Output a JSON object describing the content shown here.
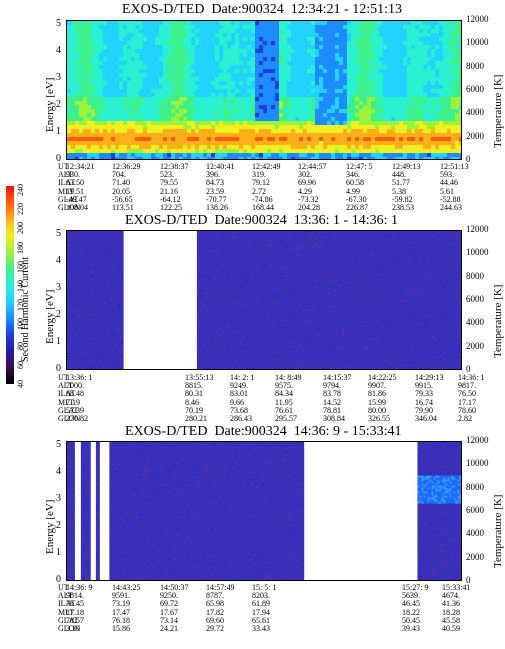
{
  "panels": [
    {
      "title": "EXOS-D/TED",
      "date": "Date:900324",
      "time_range": "12:34:21 - 12:51:13",
      "ylabel_left": "Energy [eV]",
      "ylabel_right": "Temperature [K]",
      "left_ticks": [
        "0",
        "1",
        "2",
        "3",
        "4",
        "5"
      ],
      "right_ticks": [
        "0",
        "2000",
        "4000",
        "6000",
        "8000",
        "10000",
        "12000"
      ],
      "orbit_labels": [
        "UT",
        "ALT",
        "ILAT",
        "MLT",
        "GLAT",
        "GLON"
      ],
      "orbit_columns": [
        {
          "UT": "12:34:21",
          "ALT": "930.",
          "ILAT": "63.50",
          "MLT": "19.51",
          "GLAT": "-49.47",
          "GLON": "108.04"
        },
        {
          "UT": "12:36:29",
          "ALT": "704.",
          "ILAT": "71.40",
          "MLT": "20.05",
          "GLAT": "-56.65",
          "GLON": "113.51"
        },
        {
          "UT": "12:38:37",
          "ALT": "523.",
          "ILAT": "79.55",
          "MLT": "21.16",
          "GLAT": "-64.12",
          "GLON": "122.25"
        },
        {
          "UT": "12:40:41",
          "ALT": "396.",
          "ILAT": "84.73",
          "MLT": "23.59",
          "GLAT": "-70.77",
          "GLON": "138.26"
        },
        {
          "UT": "12:42:49",
          "ALT": "319.",
          "ILAT": "79.12",
          "MLT": "2.72",
          "GLAT": "-74.86",
          "GLON": "168.44"
        },
        {
          "UT": "12:44:57",
          "ALT": "302.",
          "ILAT": "69.96",
          "MLT": "4.29",
          "GLAT": "-73.32",
          "GLON": "204.28"
        },
        {
          "UT": "12:47: 5",
          "ALT": "346.",
          "ILAT": "60.58",
          "MLT": "4.99",
          "GLAT": "-67.30",
          "GLON": "226.87"
        },
        {
          "UT": "12:49:13",
          "ALT": "448.",
          "ILAT": "51.77",
          "MLT": "5.38",
          "GLAT": "-59.82",
          "GLON": "238.53"
        },
        {
          "UT": "12:51:13",
          "ALT": "593.",
          "ILAT": "44.46",
          "MLT": "5.61",
          "GLAT": "-52.88",
          "GLON": "244.63"
        }
      ]
    },
    {
      "title": "EXOS-D/TED",
      "date": "Date:900324",
      "time_range": "13:36: 1 - 14:36: 1",
      "ylabel_left": "Energy [eV]",
      "ylabel_right": "Temperature [K]",
      "left_ticks": [
        "0",
        "1",
        "2",
        "3",
        "4",
        "5"
      ],
      "right_ticks": [
        "0",
        "2000",
        "4000",
        "6000",
        "8000",
        "10000",
        "12000"
      ],
      "orbit_labels": [
        "UT",
        "ALT",
        "ILAT",
        "MLT",
        "GLAT",
        "GLON"
      ],
      "orbit_columns": [
        {
          "UT": "13:36: 1",
          "ALT": "7000.",
          "ILAT": "68.48",
          "MLT": "7.19",
          "GLAT": "57.39",
          "GLON": "270.82"
        },
        {
          "UT": "13:55:13",
          "ALT": "8815.",
          "ILAT": "80.31",
          "MLT": "8.46",
          "GLAT": "70.19",
          "GLON": "280.21"
        },
        {
          "UT": "14: 2: 1",
          "ALT": "9249.",
          "ILAT": "83.01",
          "MLT": "9.66",
          "GLAT": "73.68",
          "GLON": "286.43"
        },
        {
          "UT": "14: 8:49",
          "ALT": "9575.",
          "ILAT": "84.34",
          "MLT": "11.95",
          "GLAT": "76.61",
          "GLON": "295.57"
        },
        {
          "UT": "14:15:37",
          "ALT": "9794.",
          "ILAT": "83.78",
          "MLT": "14.52",
          "GLAT": "78.81",
          "GLON": "308.84"
        },
        {
          "UT": "14:22:25",
          "ALT": "9907.",
          "ILAT": "81.86",
          "MLT": "15.99",
          "GLAT": "80.00",
          "GLON": "326.55"
        },
        {
          "UT": "14:29:13",
          "ALT": "9915.",
          "ILAT": "79.33",
          "MLT": "16.74",
          "GLAT": "79.90",
          "GLON": "346.04"
        },
        {
          "UT": "14:36: 1",
          "ALT": "9817.",
          "ILAT": "76.50",
          "MLT": "17.17",
          "GLAT": "78.60",
          "GLON": "2.82"
        }
      ]
    },
    {
      "title": "EXOS-D/TED",
      "date": "Date:900324",
      "time_range": "14:36: 9 - 15:33:41",
      "ylabel_left": "Energy [eV]",
      "ylabel_right": "Temperature [K]",
      "left_ticks": [
        "0",
        "1",
        "2",
        "3",
        "4",
        "5"
      ],
      "right_ticks": [
        "0",
        "2000",
        "4000",
        "6000",
        "8000",
        "10000",
        "12000"
      ],
      "orbit_labels": [
        "UT",
        "ALT",
        "ILAT",
        "MLT",
        "GLAT",
        "GLON"
      ],
      "orbit_columns": [
        {
          "UT": "14:36: 9",
          "ALT": "9814.",
          "ILAT": "76.45",
          "MLT": "17.18",
          "GLAT": "78.57",
          "GLON": "3.10"
        },
        {
          "UT": "14:43:25",
          "ALT": "9591.",
          "ILAT": "73.19",
          "MLT": "17.47",
          "GLAT": "76.18",
          "GLON": "15.86"
        },
        {
          "UT": "14:50:37",
          "ALT": "9250.",
          "ILAT": "69.72",
          "MLT": "17.67",
          "GLAT": "73.14",
          "GLON": "24.21"
        },
        {
          "UT": "14:57:49",
          "ALT": "8787.",
          "ILAT": "65.98",
          "MLT": "17.82",
          "GLAT": "69.60",
          "GLON": "29.72"
        },
        {
          "UT": "15: 5: 1",
          "ALT": "8203.",
          "ILAT": "61.89",
          "MLT": "17.94",
          "GLAT": "65.61",
          "GLON": "33.43"
        },
        {
          "UT": "15:27: 9",
          "ALT": "5639.",
          "ILAT": "46.45",
          "MLT": "18.22",
          "GLAT": "50.45",
          "GLON": "39.43"
        },
        {
          "UT": "15:33:41",
          "ALT": "4674.",
          "ILAT": "41.36",
          "MLT": "18.28",
          "GLAT": "45.58",
          "GLON": "40.59"
        }
      ]
    }
  ],
  "colorbar": {
    "label": "Second Harmonic Current",
    "ticks": [
      "40",
      "60",
      "80",
      "100",
      "120",
      "140",
      "160",
      "180",
      "200",
      "220",
      "240"
    ],
    "colors": [
      "#000000",
      "#3a0a55",
      "#2a1aa0",
      "#1f3de0",
      "#1e8cff",
      "#22d2ff",
      "#29f0d0",
      "#3ef08a",
      "#9cf23a",
      "#f0f020",
      "#ffb018",
      "#ff5a10",
      "#ff1010"
    ]
  },
  "chart_data": [
    {
      "type": "heatmap",
      "title": "EXOS-D/TED Date:900324 12:34:21 - 12:51:13",
      "xlabel": "UT",
      "ylabel": "Energy [eV]",
      "ylabel_right": "Temperature [K]",
      "ylim": [
        0,
        5
      ],
      "ylim_right": [
        0,
        12000
      ],
      "x": [
        "12:34:21",
        "12:36:29",
        "12:38:37",
        "12:40:41",
        "12:42:49",
        "12:44:57",
        "12:47: 5",
        "12:49:13",
        "12:51:13"
      ],
      "description_bands": [
        {
          "from": "12:34:21",
          "to": "12:51:13",
          "energy_low": 0.4,
          "energy_high": 1.5,
          "level": "high"
        }
      ]
    },
    {
      "type": "heatmap",
      "title": "EXOS-D/TED Date:900324 13:36: 1 - 14:36: 1",
      "xlabel": "UT",
      "ylabel": "Energy [eV]",
      "ylabel_right": "Temperature [K]",
      "ylim": [
        0,
        5
      ],
      "ylim_right": [
        0,
        12000
      ],
      "x": [
        "13:36: 1",
        "13:55:13",
        "14: 2: 1",
        "14: 8:49",
        "14:15:37",
        "14:22:25",
        "14:29:13",
        "14:36: 1"
      ],
      "data_gaps": [
        [
          "13:41:00",
          "13:55:13"
        ]
      ]
    },
    {
      "type": "heatmap",
      "title": "EXOS-D/TED Date:900324 14:36: 9 - 15:33:41",
      "xlabel": "UT",
      "ylabel": "Energy [eV]",
      "ylabel_right": "Temperature [K]",
      "ylim": [
        0,
        5
      ],
      "ylim_right": [
        0,
        12000
      ],
      "x": [
        "14:36: 9",
        "14:43:25",
        "14:50:37",
        "14:57:49",
        "15: 5: 1",
        "15:27: 9",
        "15:33:41"
      ],
      "data_gaps": [
        [
          "14:37:00",
          "14:38:30"
        ],
        [
          "14:39:30",
          "14:40:30"
        ],
        [
          "15:05:01",
          "15:27:09"
        ]
      ]
    }
  ]
}
